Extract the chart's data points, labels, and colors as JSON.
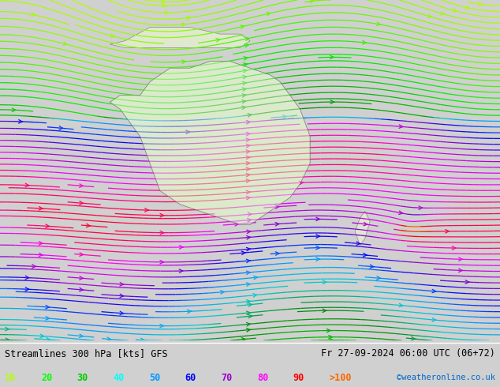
{
  "title_left": "Streamlines 300 hPa [kts] GFS",
  "title_right": "Fr 27-09-2024 06:00 UTC (06+72)",
  "credit": "©weatheronline.co.uk",
  "legend_values": [
    "10",
    "20",
    "30",
    "40",
    "50",
    "60",
    "70",
    "80",
    "90",
    ">100"
  ],
  "legend_colors": [
    "#b4ff00",
    "#00ff00",
    "#00cc00",
    "#00ffff",
    "#0099ff",
    "#0000ff",
    "#9900cc",
    "#ff00ff",
    "#ff0000",
    "#ff6600"
  ],
  "bg_color": "#d8d8d8",
  "land_color": "#e8e8e8",
  "highlight_color": "#90ee90",
  "figsize": [
    6.34,
    4.9
  ],
  "dpi": 100,
  "speed_colors": {
    "10": "#b4ff00",
    "20": "#00ee00",
    "30": "#008800",
    "40": "#00ffff",
    "50": "#0099ff",
    "60": "#0000ff",
    "70": "#aa00cc",
    "80": "#ff00ff",
    "90": "#ff0000",
    "100": "#ff8800"
  }
}
